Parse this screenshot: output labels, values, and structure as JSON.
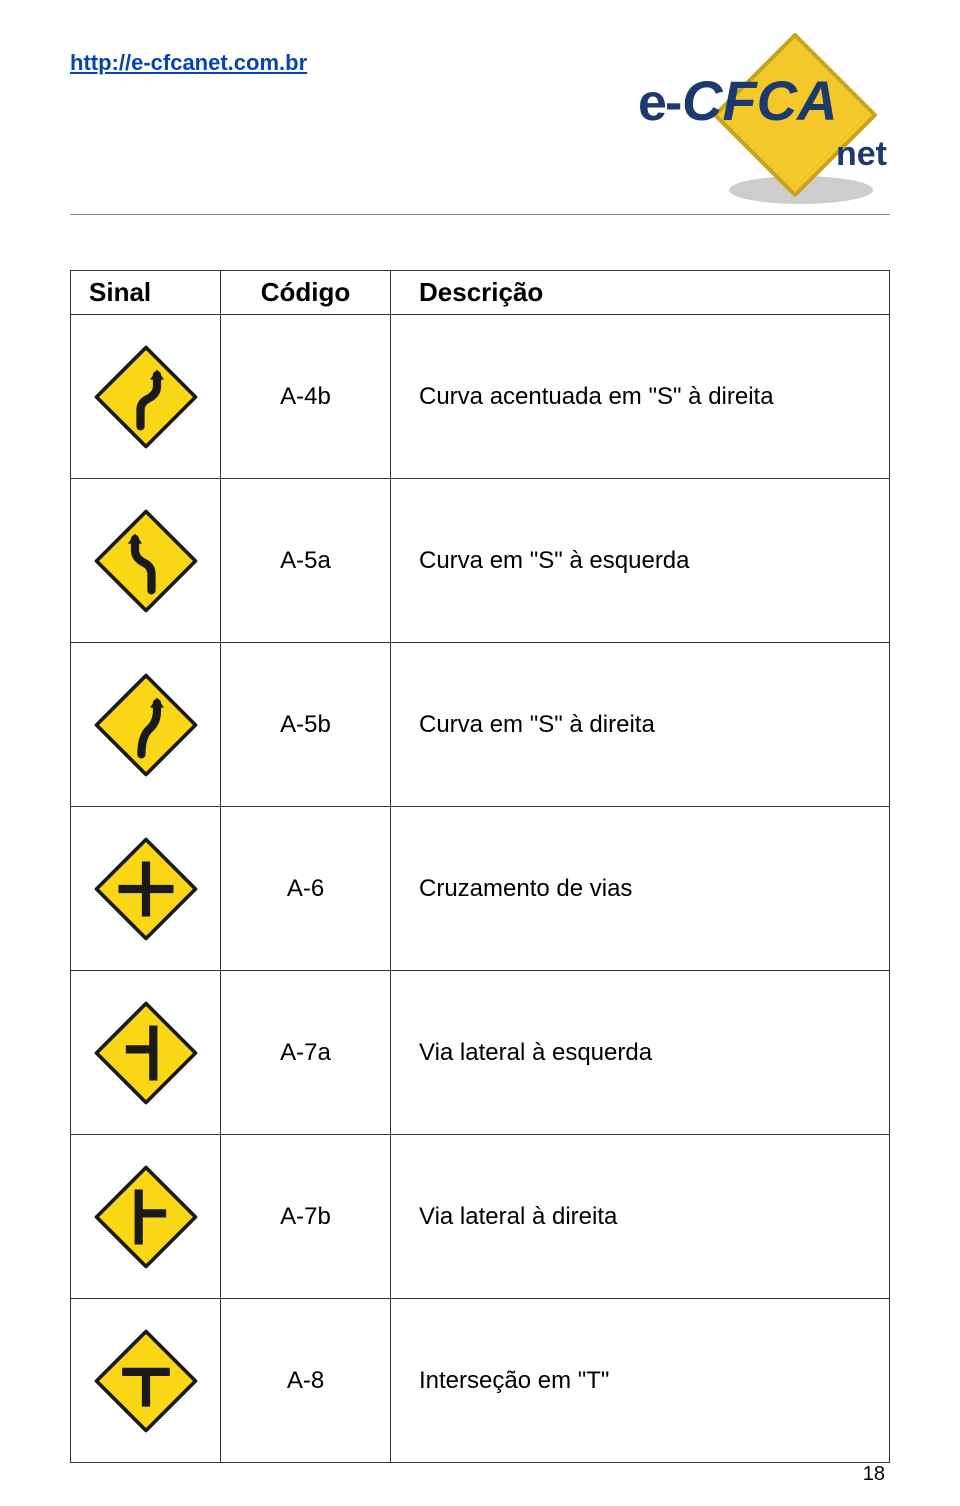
{
  "header": {
    "url": "http://e-cfcanet.com.br",
    "logo": {
      "text_top": "e-CFCA",
      "text_bottom": "net",
      "diamond_fill": "#f4c82a",
      "diamond_stroke": "#c7a41e",
      "text_color": "#1d3a6e",
      "shadow_color": "#b8b8b8"
    }
  },
  "table": {
    "columns": [
      "Sinal",
      "Código",
      "Descrição"
    ],
    "rows": [
      {
        "code": "A-4b",
        "desc": "Curva acentuada em \"S\" à direita",
        "sign": "s-curve-right"
      },
      {
        "code": "A-5a",
        "desc": "Curva em \"S\" à esquerda",
        "sign": "s-curve-left"
      },
      {
        "code": "A-5b",
        "desc": "Curva em \"S\" à direita",
        "sign": "s-curve-right-mild"
      },
      {
        "code": "A-6",
        "desc": "Cruzamento de vias",
        "sign": "cross"
      },
      {
        "code": "A-7a",
        "desc": "Via lateral à esquerda",
        "sign": "side-left"
      },
      {
        "code": "A-7b",
        "desc": "Via lateral à direita",
        "sign": "side-right"
      },
      {
        "code": "A-8",
        "desc": "Interseção em \"T\"",
        "sign": "t-intersection"
      }
    ]
  },
  "sign_style": {
    "fill": "#f9d616",
    "stroke": "#1a1a1a",
    "stroke_width": 4,
    "symbol_color": "#1a1a1a",
    "symbol_width": 9
  },
  "page_number": "18"
}
